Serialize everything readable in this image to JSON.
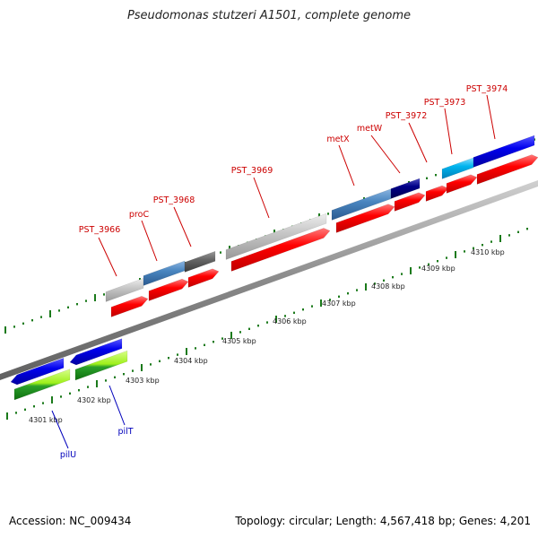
{
  "title": "Pseudomonas stutzeri A1501, complete genome",
  "footer": {
    "accession_label": "Accession:",
    "accession": "NC_009434",
    "topology_label": "Topology:",
    "topology": "circular",
    "length_label": "Length:",
    "length": "4,567,418 bp",
    "genes_label": "Genes:",
    "genes": "4,201"
  },
  "axis_labels": [
    "4301 kbp",
    "4302 kbp",
    "4303 kbp",
    "4304 kbp",
    "4305 kbp",
    "4306 kbp",
    "4307 kbp",
    "4308 kbp",
    "4309 kbp",
    "4310 kbp"
  ],
  "gene_labels": {
    "red": [
      "PST_3966",
      "proC",
      "PST_3968",
      "PST_3969",
      "metX",
      "metW",
      "PST_3972",
      "PST_3973",
      "PST_3974"
    ],
    "blue": [
      "pilU",
      "pilT"
    ]
  },
  "colors": {
    "label_red": "#cc0000",
    "label_blue": "#0000bb",
    "cds_red": "#ff0000",
    "cds_blue": "#0000ee",
    "cds_green": "#1a9a1a",
    "cds_lime": "#9ef01a",
    "cds_cyan": "#00b4ee",
    "cds_steel": "#4a86c0",
    "cds_navy": "#000088",
    "cds_silver": "#c8c8c8",
    "cds_gray": "#666666",
    "backbone": "#9a9a9a",
    "tick_green": "#1b7a1b"
  }
}
